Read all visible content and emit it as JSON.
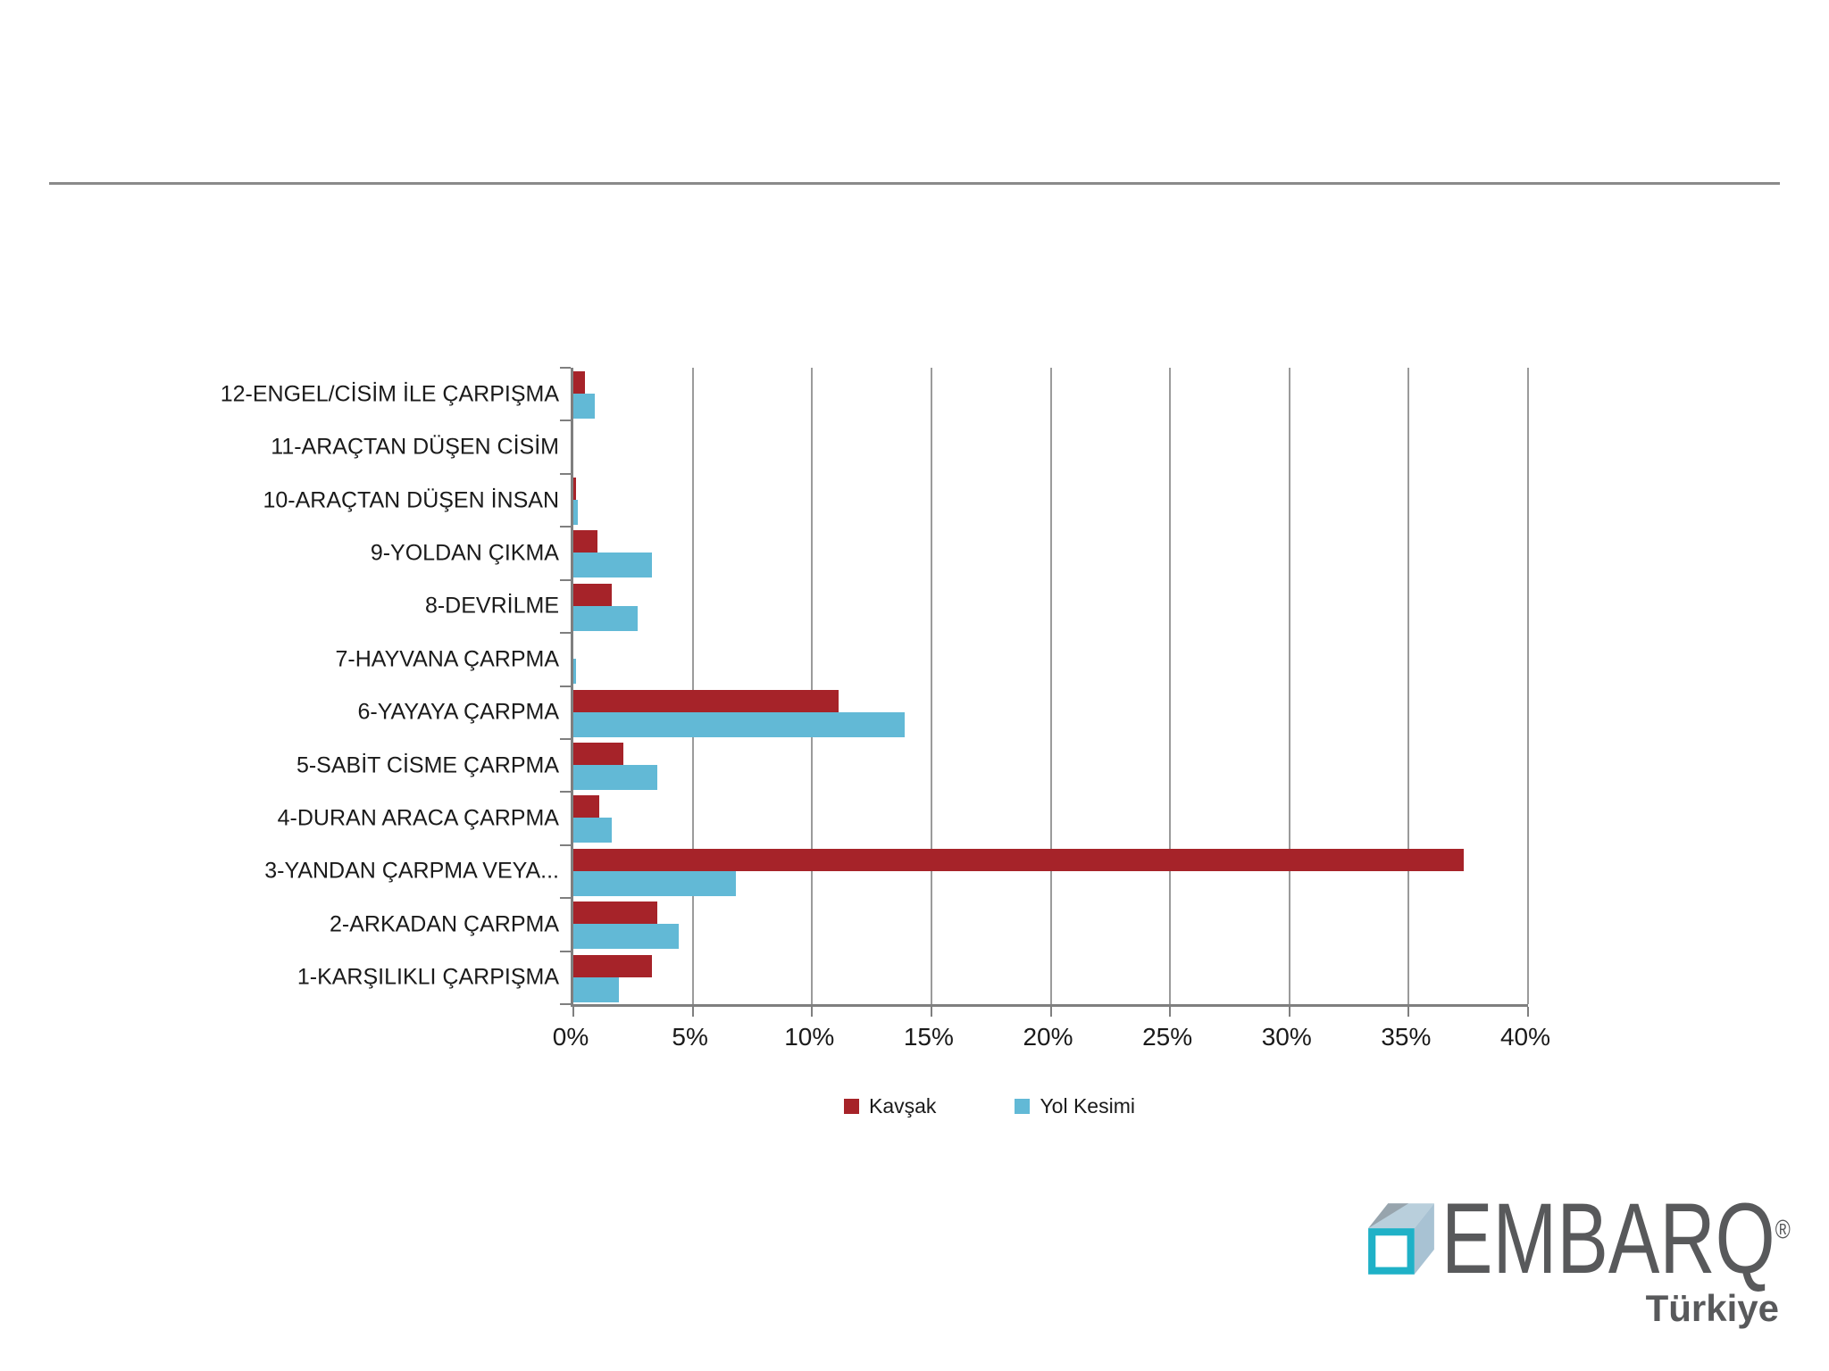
{
  "chart_data": {
    "type": "bar",
    "orientation": "horizontal",
    "title": "",
    "xlabel": "",
    "ylabel": "",
    "categories": [
      "12-ENGEL/CİSİM İLE ÇARPIŞMA",
      "11-ARAÇTAN DÜŞEN CİSİM",
      "10-ARAÇTAN DÜŞEN İNSAN",
      "9-YOLDAN ÇIKMA",
      "8-DEVRİLME",
      "7-HAYVANA ÇARPMA",
      "6-YAYAYA ÇARPMA",
      "5-SABİT CİSME ÇARPMA",
      "4-DURAN ARACA ÇARPMA",
      "3-YANDAN ÇARPMA VEYA...",
      "2-ARKADAN ÇARPMA",
      "1-KARŞILIKLI ÇARPIŞMA"
    ],
    "series": [
      {
        "name": "Kavşak",
        "color": "#A62329",
        "values": [
          0.5,
          0,
          0.1,
          1.0,
          1.6,
          0,
          11.1,
          2.1,
          1.1,
          37.3,
          3.5,
          3.3
        ]
      },
      {
        "name": "Yol Kesimi",
        "color": "#62B9D6",
        "values": [
          0.9,
          0,
          0.2,
          3.3,
          2.7,
          0.1,
          13.9,
          3.5,
          1.6,
          6.8,
          4.4,
          1.9
        ]
      }
    ],
    "xlim": [
      0,
      40
    ],
    "xticks": [
      "0%",
      "5%",
      "10%",
      "15%",
      "20%",
      "25%",
      "30%",
      "35%",
      "40%"
    ],
    "xtick_values": [
      0,
      5,
      10,
      15,
      20,
      25,
      30,
      35,
      40
    ],
    "grid": "vertical",
    "legend_position": "bottom",
    "values_unit": "percent"
  },
  "colors": {
    "bar_red": "#A62329",
    "bar_blue": "#62B9D6",
    "axis_gray": "#7F7F7F",
    "gridline_gray": "#9B9B9B",
    "divider_gray": "#8A8A8A",
    "logo_gray": "#58595B",
    "cube_teal": "#1FB1C7",
    "cube_light": "#B9CFDC"
  },
  "logo": {
    "brand": "EMBARQ",
    "registered": "®",
    "region": "Türkiye"
  }
}
